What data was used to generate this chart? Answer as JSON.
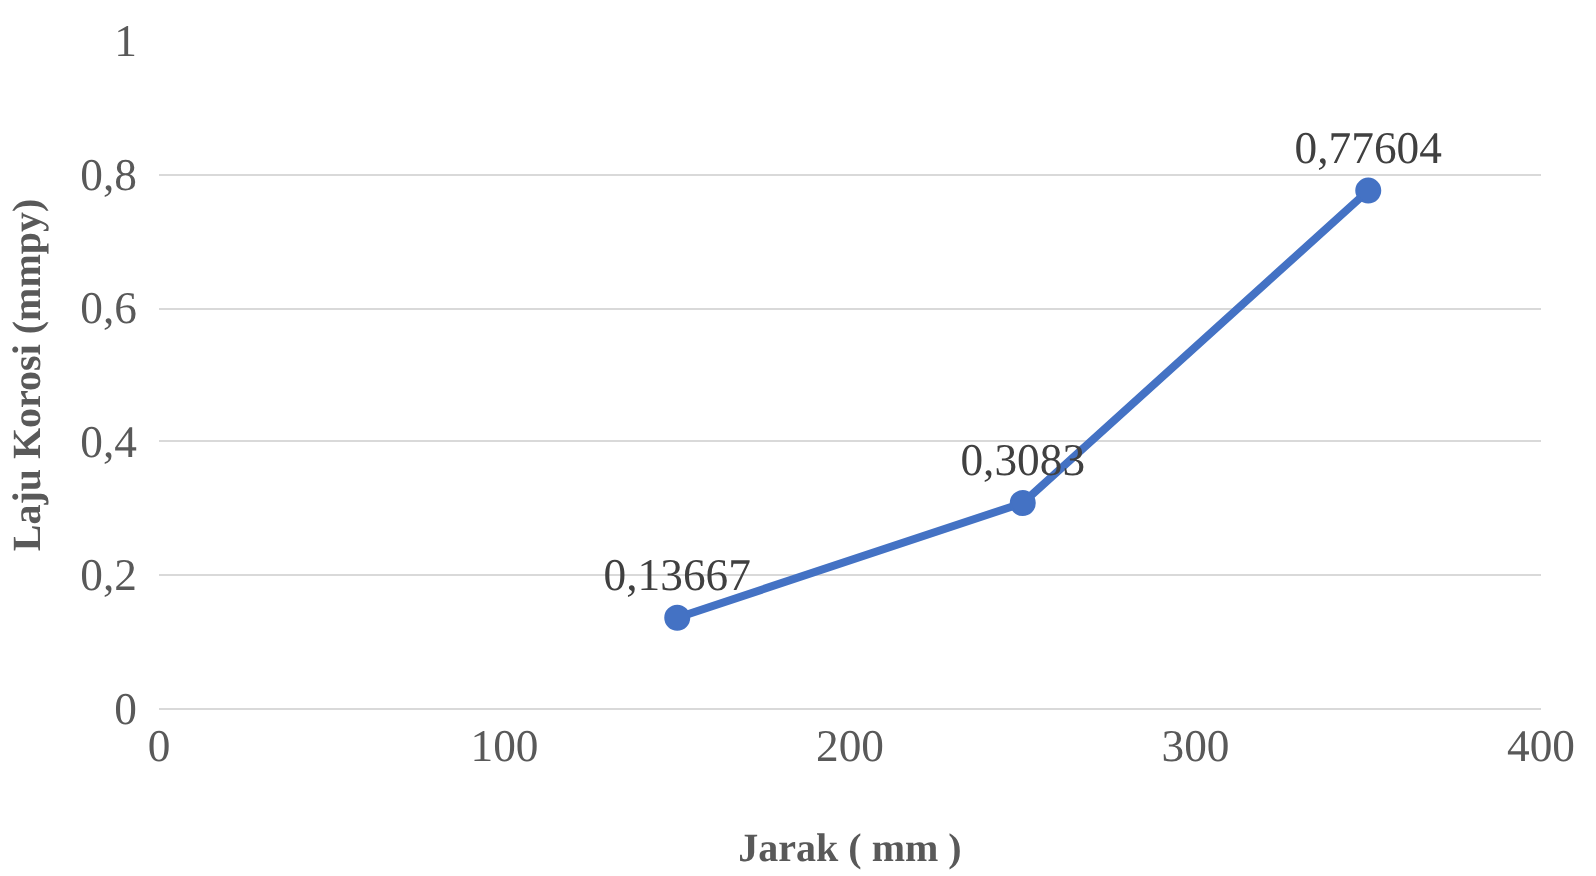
{
  "chart_data": {
    "type": "line",
    "xlabel": "Jarak ( mm )",
    "ylabel": "Laju Korosi (mmpy)",
    "x": [
      150,
      250,
      350
    ],
    "series": [
      {
        "color": "#4472c4",
        "values": [
          0.13667,
          0.3083,
          0.77604
        ],
        "value_labels": [
          "0,13667",
          "0,3083",
          "0,77604"
        ]
      }
    ],
    "xlim": [
      0,
      400
    ],
    "xticks": [
      0,
      100,
      200,
      300,
      400
    ],
    "ylim": [
      0,
      1
    ],
    "yticks": [
      0,
      {
        "value": 0.2,
        "label": "0,2"
      },
      {
        "value": 0.4,
        "label": "0,4"
      },
      {
        "value": 0.6,
        "label": "0,6"
      },
      {
        "value": 0.8,
        "label": "0,8"
      },
      1
    ],
    "grid": "y",
    "marker": "circle",
    "line_style": "solid"
  }
}
